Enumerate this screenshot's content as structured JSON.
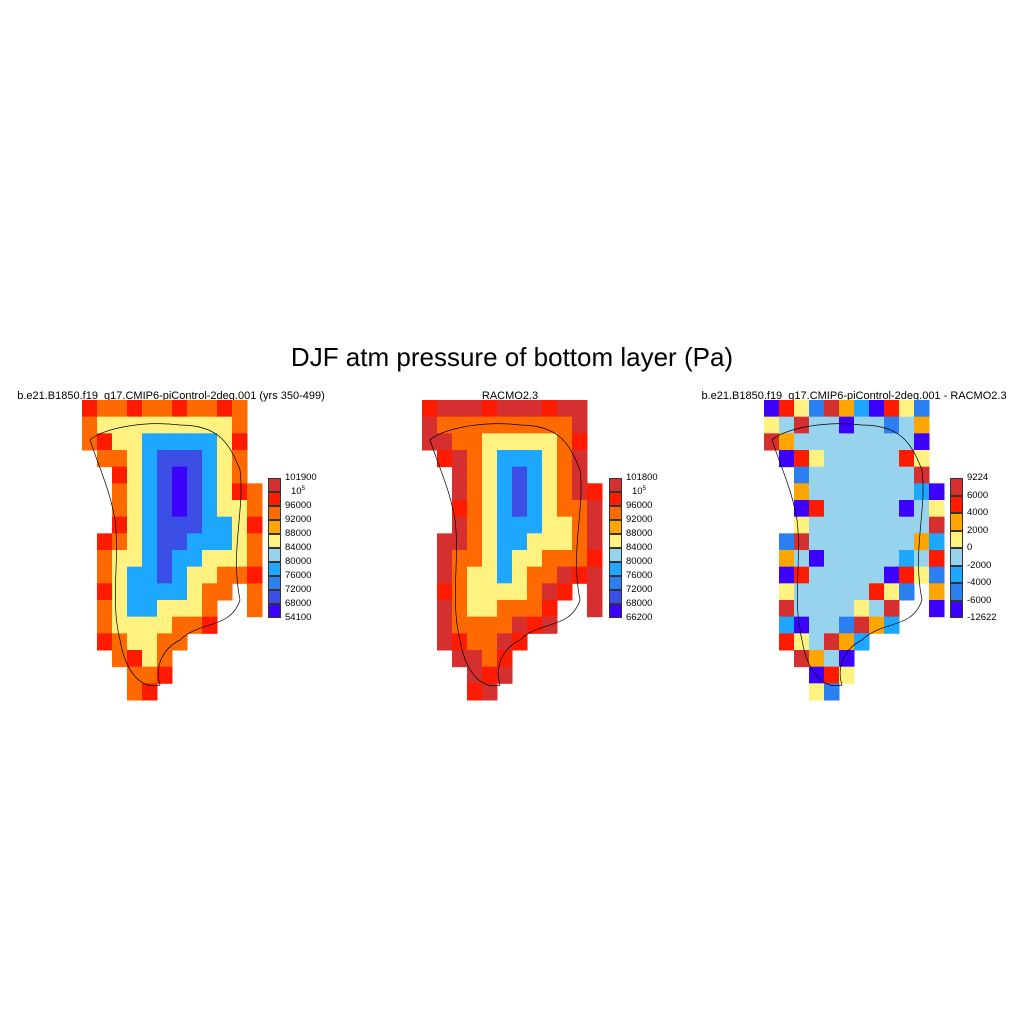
{
  "title": "DJF atm pressure of bottom layer (Pa)",
  "panels": [
    {
      "id": "model",
      "title": "b.e21.B1850.f19_g17.CMIP6-piControl-2deg.001 (yrs 350-499)",
      "colorbar": {
        "labels": [
          "101900",
          "10^5",
          "96000",
          "92000",
          "88000",
          "84000",
          "80000",
          "76000",
          "72000",
          "68000",
          "54100"
        ],
        "colors": [
          "#d62f2f",
          "#ff1b00",
          "#ff6a00",
          "#ffa500",
          "#fff280",
          "#98d3ee",
          "#1ea7ff",
          "#2b7ff0",
          "#3b4fe6",
          "#3c00ff"
        ]
      }
    },
    {
      "id": "racmo",
      "title": "RACMO2.3",
      "colorbar": {
        "labels": [
          "101800",
          "10^5",
          "96000",
          "92000",
          "88000",
          "84000",
          "80000",
          "76000",
          "72000",
          "68000",
          "66200"
        ],
        "colors": [
          "#d62f2f",
          "#ff1b00",
          "#ff6a00",
          "#ffa500",
          "#fff280",
          "#98d3ee",
          "#1ea7ff",
          "#2b7ff0",
          "#3b4fe6",
          "#3c00ff"
        ]
      }
    },
    {
      "id": "diff",
      "title": "b.e21.B1850.f19_g17.CMIP6-piControl-2deg.001 - RACMO2.3",
      "colorbar": {
        "labels": [
          "9224",
          "6000",
          "4000",
          "2000",
          "0",
          "-2000",
          "-4000",
          "-6000",
          "-12622"
        ],
        "colors": [
          "#d62f2f",
          "#ff1b00",
          "#ffa500",
          "#fff280",
          "#98d3ee",
          "#1ea7ff",
          "#2b7ff0",
          "#3c00ff"
        ]
      }
    }
  ]
}
